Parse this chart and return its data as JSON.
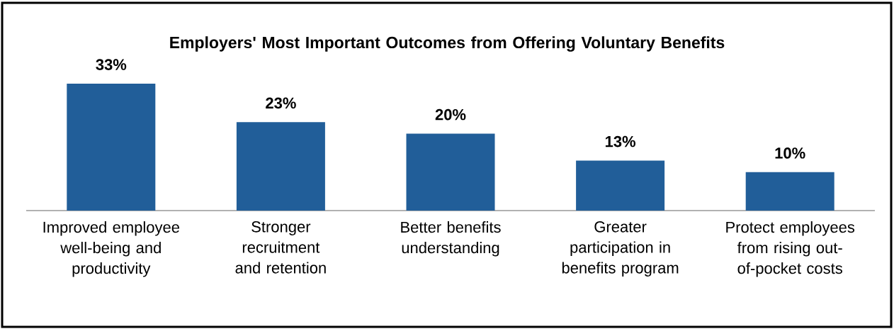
{
  "chart_data": {
    "type": "bar",
    "title": "Employers' Most Important Outcomes from Offering Voluntary Benefits",
    "categories": [
      "Improved employee well-being and productivity",
      "Stronger recruitment and retention",
      "Better benefits understanding",
      "Greater participation in benefits program",
      "Protect employees from rising out-of-pocket costs"
    ],
    "values": [
      33,
      23,
      20,
      13,
      10
    ],
    "value_labels": [
      "33%",
      "23%",
      "20%",
      "13%",
      "10%"
    ],
    "color": "#215e99"
  }
}
